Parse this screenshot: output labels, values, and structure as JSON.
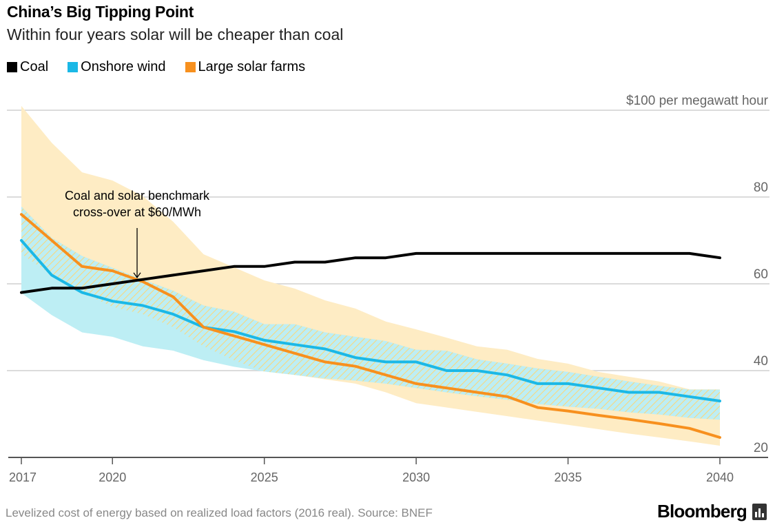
{
  "header": {
    "title": "China’s Big Tipping Point",
    "subtitle": "Within four years solar will be cheaper than coal"
  },
  "footer": {
    "source": "Levelized cost of energy based on realized load factors (2016 real). Source: BNEF",
    "logo": "Bloomberg"
  },
  "chart_data": {
    "type": "line",
    "title": "China’s Big Tipping Point",
    "subtitle": "Within four years solar will be cheaper than coal",
    "ylabel": "$100 per megawatt hour",
    "ylim": [
      20,
      100
    ],
    "xlim": [
      2017,
      2040
    ],
    "grid": true,
    "legend_position": "top-left",
    "x": [
      2017,
      2018,
      2019,
      2020,
      2021,
      2022,
      2023,
      2024,
      2025,
      2026,
      2027,
      2028,
      2029,
      2030,
      2031,
      2032,
      2033,
      2034,
      2035,
      2036,
      2037,
      2038,
      2039,
      2040
    ],
    "x_ticks": [
      2017,
      2020,
      2025,
      2030,
      2035,
      2040
    ],
    "y_ticks": [
      {
        "value": 100,
        "label": "$100 per megawatt hour"
      },
      {
        "value": 80,
        "label": "80"
      },
      {
        "value": 60,
        "label": "60"
      },
      {
        "value": 40,
        "label": "40"
      },
      {
        "value": 20,
        "label": "20"
      }
    ],
    "series": [
      {
        "name": "Coal",
        "color": "#000000",
        "values": [
          58,
          59,
          59,
          60,
          61,
          62,
          63,
          64,
          64,
          65,
          65,
          66,
          66,
          67,
          67,
          67,
          67,
          67,
          67,
          67,
          67,
          67,
          67,
          66
        ]
      },
      {
        "name": "Onshore wind",
        "color": "#1bb8e6",
        "values": [
          70,
          62,
          58,
          56,
          55,
          53,
          50,
          49,
          47,
          46,
          45,
          43,
          42,
          42,
          40,
          40,
          39,
          37,
          37,
          36,
          35,
          35,
          34,
          33
        ],
        "range_color": "#bdeef4",
        "range_upper": [
          77.8,
          70.6,
          66.4,
          63.7,
          61,
          58.4,
          55,
          53.6,
          50.7,
          50.7,
          48.8,
          47.8,
          46.8,
          44.8,
          44.6,
          42.6,
          41.6,
          40.5,
          39.7,
          38.6,
          37.5,
          36.5,
          35.6,
          35.6
        ],
        "range_lower": [
          57.9,
          52.8,
          48.8,
          47.8,
          45.6,
          44.6,
          42.4,
          40.9,
          39.8,
          39,
          38.2,
          37.7,
          37,
          36,
          35,
          34.1,
          33.3,
          32.3,
          31.7,
          31.2,
          30.4,
          29.9,
          29.1,
          28.7
        ]
      },
      {
        "name": "Large solar farms",
        "color": "#f7901e",
        "values": [
          76,
          70,
          64,
          63,
          60.5,
          57,
          50,
          48,
          46,
          44,
          42,
          41,
          39,
          37,
          36,
          35,
          34,
          31.5,
          30.7,
          29.7,
          28.8,
          27.8,
          26.7,
          24.6
        ],
        "range_color": "#feecc4",
        "range_upper": [
          101,
          92.5,
          85.7,
          83.8,
          80.2,
          74.3,
          66.8,
          63.8,
          60.8,
          58.9,
          56.2,
          54.3,
          51.3,
          49.5,
          47.6,
          45.6,
          44.8,
          42.7,
          41.6,
          39.7,
          38.6,
          37.5,
          35.7,
          35.7
        ],
        "range_lower": [
          66.9,
          62,
          58,
          54.7,
          53,
          50,
          45.6,
          42.4,
          39.8,
          39,
          38,
          37,
          35,
          32.5,
          31.5,
          30.5,
          29.5,
          28.5,
          27.5,
          26.5,
          25.5,
          24.6,
          23.7,
          22.7
        ]
      }
    ],
    "annotations": [
      {
        "text": [
          "Coal and solar benchmark",
          "cross-over at $60/MWh"
        ],
        "x": 2020.6,
        "y": 60.5
      }
    ]
  }
}
